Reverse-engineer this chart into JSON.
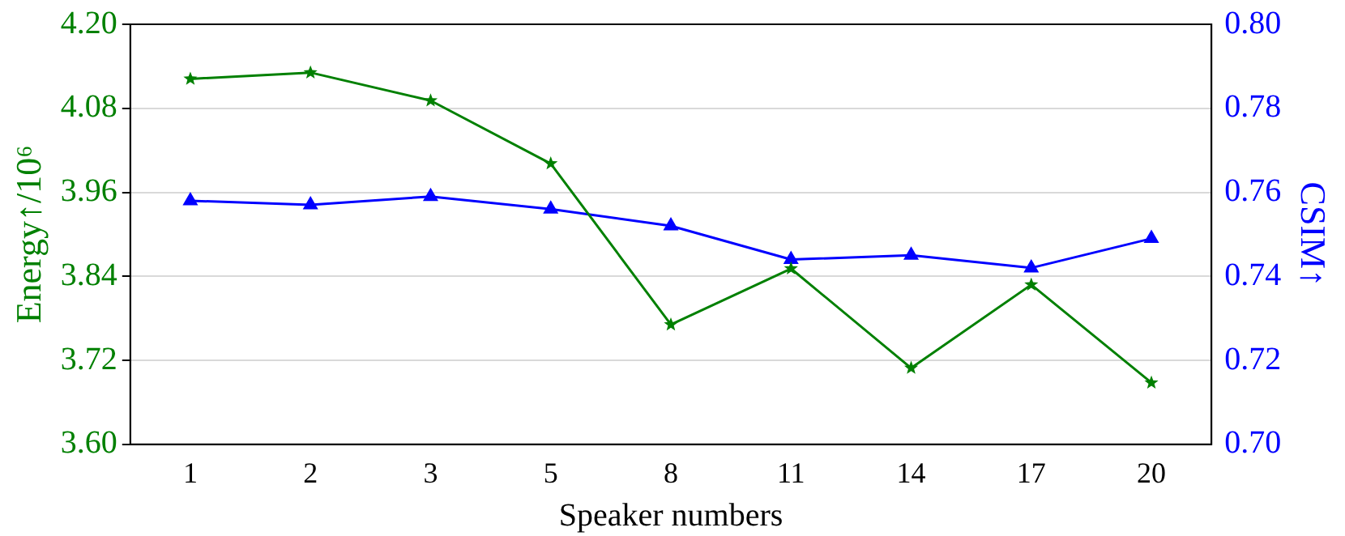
{
  "chart_data": {
    "type": "line",
    "xlabel": "Speaker numbers",
    "ylabel": "Energy↑/10⁶",
    "y2label": "CSIM↑",
    "categories": [
      "1",
      "2",
      "3",
      "5",
      "8",
      "11",
      "14",
      "17",
      "20"
    ],
    "series": [
      {
        "color": "#008000",
        "marker": "star",
        "values": [
          4.122,
          4.131,
          4.091,
          4.001,
          3.771,
          3.851,
          3.709,
          3.828,
          3.688
        ]
      },
      {
        "color": "#0000ff",
        "marker": "triangle",
        "axis": "y2",
        "values": [
          0.758,
          0.757,
          0.759,
          0.756,
          0.752,
          0.744,
          0.745,
          0.742,
          0.749
        ]
      }
    ],
    "ylim": [
      3.6,
      4.2
    ],
    "yticks": [
      {
        "value": 3.6,
        "label": "3.60"
      },
      {
        "value": 3.72,
        "label": "3.72"
      },
      {
        "value": 3.84,
        "label": "3.84"
      },
      {
        "value": 3.96,
        "label": "3.96"
      },
      {
        "value": 4.08,
        "label": "4.08"
      },
      {
        "value": 4.2,
        "label": "4.20"
      }
    ],
    "y2lim": [
      0.7,
      0.8
    ],
    "y2ticks": [
      {
        "value": 0.7,
        "label": "0.70"
      },
      {
        "value": 0.72,
        "label": "0.72"
      },
      {
        "value": 0.74,
        "label": "0.74"
      },
      {
        "value": 0.76,
        "label": "0.76"
      },
      {
        "value": 0.78,
        "label": "0.78"
      },
      {
        "value": 0.8,
        "label": "0.80"
      }
    ],
    "grid": "y",
    "legend": false
  }
}
